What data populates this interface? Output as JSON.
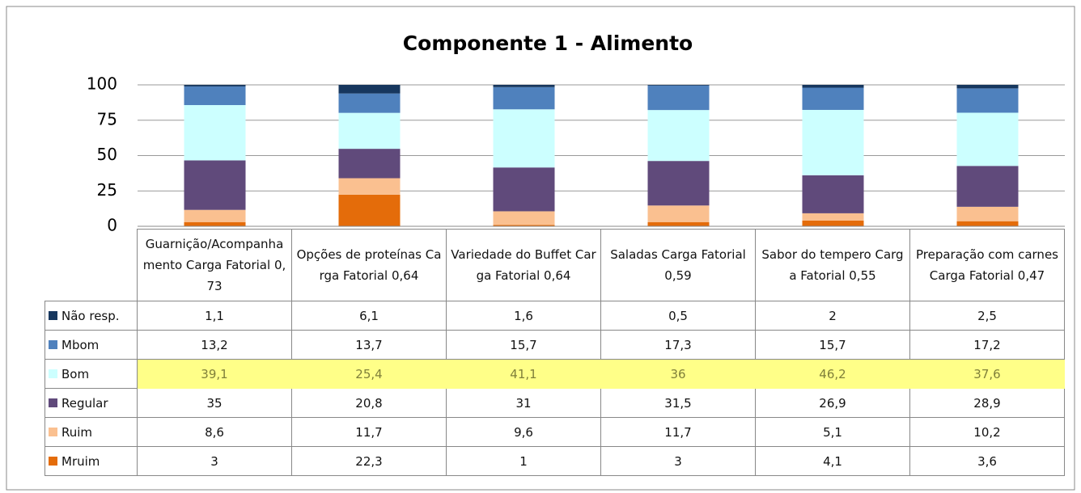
{
  "chart_data": {
    "type": "stacked_bar",
    "title": "Componente 1 - Alimento",
    "categories": [
      "Guarnição/Acompanhamento Carga Fatorial 0,73",
      "Opções de proteínas Carga Fatorial 0,64",
      "Variedade do Buffet Carga Fatorial 0,64",
      "Saladas Carga Fatorial 0,59",
      "Sabor do tempero Carga Fatorial 0,55",
      "Preparação com carnes Carga Fatorial 0,47"
    ],
    "series": [
      {
        "name": "Não resp.",
        "color": "#17375e",
        "values": [
          1.1,
          6.1,
          1.6,
          0.5,
          2,
          2.5
        ],
        "value_labels": [
          "1,1",
          "6,1",
          "1,6",
          "0,5",
          "2",
          "2,5"
        ]
      },
      {
        "name": "Mbom",
        "color": "#4f81bd",
        "values": [
          13.2,
          13.7,
          15.7,
          17.3,
          15.7,
          17.2
        ],
        "value_labels": [
          "13,2",
          "13,7",
          "15,7",
          "17,3",
          "15,7",
          "17,2"
        ]
      },
      {
        "name": "Bom",
        "color": "#ccffff",
        "highlight": "#ffff88",
        "values": [
          39.1,
          25.4,
          41.1,
          36,
          46.2,
          37.6
        ],
        "value_labels": [
          "39,1",
          "25,4",
          "41,1",
          "36",
          "46,2",
          "37,6"
        ]
      },
      {
        "name": "Regular",
        "color": "#604a7b",
        "values": [
          35,
          20.8,
          31,
          31.5,
          26.9,
          28.9
        ],
        "value_labels": [
          "35",
          "20,8",
          "31",
          "31,5",
          "26,9",
          "28,9"
        ]
      },
      {
        "name": "Ruim",
        "color": "#fac090",
        "values": [
          8.6,
          11.7,
          9.6,
          11.7,
          5.1,
          10.2
        ],
        "value_labels": [
          "8,6",
          "11,7",
          "9,6",
          "11,7",
          "5,1",
          "10,2"
        ]
      },
      {
        "name": "Mruim",
        "color": "#e46c0a",
        "values": [
          3,
          22.3,
          1,
          3,
          4.1,
          3.6
        ],
        "value_labels": [
          "3",
          "22,3",
          "1",
          "3",
          "4,1",
          "3,6"
        ]
      }
    ],
    "ylim": [
      0,
      100
    ],
    "yticks": [
      0,
      25,
      50,
      75,
      100
    ],
    "grid": true
  }
}
